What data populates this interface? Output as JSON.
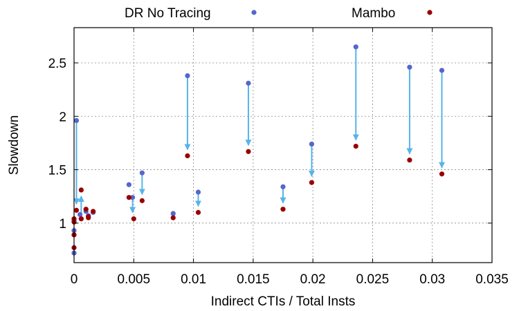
{
  "chart_data": {
    "type": "scatter",
    "xlabel": "Indirect CTIs / Total Insts",
    "ylabel": "Slowdown",
    "xlim": [
      0,
      0.035
    ],
    "ylim": [
      0.63,
      2.83
    ],
    "xticks": [
      0,
      0.005,
      0.01,
      0.015,
      0.02,
      0.025,
      0.03,
      0.035
    ],
    "xtick_labels": [
      "0",
      "0.005",
      "0.01",
      "0.015",
      "0.02",
      "0.025",
      "0.03",
      "0.035"
    ],
    "yticks": [
      1,
      1.5,
      2,
      2.5
    ],
    "ytick_labels": [
      "1",
      "1.5",
      "2",
      "2.5"
    ],
    "grid": true,
    "legend_position": "top (above plot)",
    "colors": {
      "dr": "#5566cc",
      "mambo": "#990000",
      "arrow": "#56b4e9"
    },
    "series": [
      {
        "name": "DR No Tracing",
        "points": [
          [
            0.0,
            0.72
          ],
          [
            0.0,
            0.93
          ],
          [
            0.0,
            1.02
          ],
          [
            0.0002,
            1.96
          ],
          [
            0.0005,
            1.08
          ],
          [
            0.0006,
            1.04
          ],
          [
            0.001,
            1.11
          ],
          [
            0.0012,
            1.07
          ],
          [
            0.0016,
            1.1
          ],
          [
            0.0046,
            1.36
          ],
          [
            0.0049,
            1.24
          ],
          [
            0.0057,
            1.47
          ],
          [
            0.0083,
            1.09
          ],
          [
            0.0104,
            1.29
          ],
          [
            0.0095,
            2.38
          ],
          [
            0.0146,
            2.31
          ],
          [
            0.0175,
            1.34
          ],
          [
            0.0199,
            1.74
          ],
          [
            0.0236,
            2.65
          ],
          [
            0.0281,
            2.46
          ],
          [
            0.0308,
            2.43
          ]
        ]
      },
      {
        "name": "Mambo",
        "points": [
          [
            0.0,
            0.77
          ],
          [
            0.0,
            0.89
          ],
          [
            0.0,
            1.01
          ],
          [
            0.0,
            1.04
          ],
          [
            0.0002,
            1.12
          ],
          [
            0.0006,
            1.31
          ],
          [
            0.0006,
            1.04
          ],
          [
            0.001,
            1.13
          ],
          [
            0.0012,
            1.05
          ],
          [
            0.0012,
            1.06
          ],
          [
            0.0016,
            1.11
          ],
          [
            0.0046,
            1.24
          ],
          [
            0.005,
            1.04
          ],
          [
            0.0057,
            1.21
          ],
          [
            0.0083,
            1.05
          ],
          [
            0.0104,
            1.1
          ],
          [
            0.0095,
            1.63
          ],
          [
            0.0146,
            1.67
          ],
          [
            0.0175,
            1.13
          ],
          [
            0.0199,
            1.38
          ],
          [
            0.0236,
            1.72
          ],
          [
            0.0281,
            1.59
          ],
          [
            0.0308,
            1.46
          ]
        ]
      }
    ],
    "arrows": [
      {
        "x": 0.0002,
        "from": 1.96,
        "to": 1.12
      },
      {
        "x": 0.0006,
        "from": 1.08,
        "to": 1.31
      },
      {
        "x": 0.0049,
        "from": 1.24,
        "to": 1.04
      },
      {
        "x": 0.0057,
        "from": 1.47,
        "to": 1.21
      },
      {
        "x": 0.0095,
        "from": 2.38,
        "to": 1.63
      },
      {
        "x": 0.0104,
        "from": 1.29,
        "to": 1.1
      },
      {
        "x": 0.0146,
        "from": 2.31,
        "to": 1.67
      },
      {
        "x": 0.0175,
        "from": 1.34,
        "to": 1.13
      },
      {
        "x": 0.0199,
        "from": 1.74,
        "to": 1.38
      },
      {
        "x": 0.0236,
        "from": 2.65,
        "to": 1.72
      },
      {
        "x": 0.0281,
        "from": 2.46,
        "to": 1.59
      },
      {
        "x": 0.0308,
        "from": 2.43,
        "to": 1.46
      }
    ]
  }
}
